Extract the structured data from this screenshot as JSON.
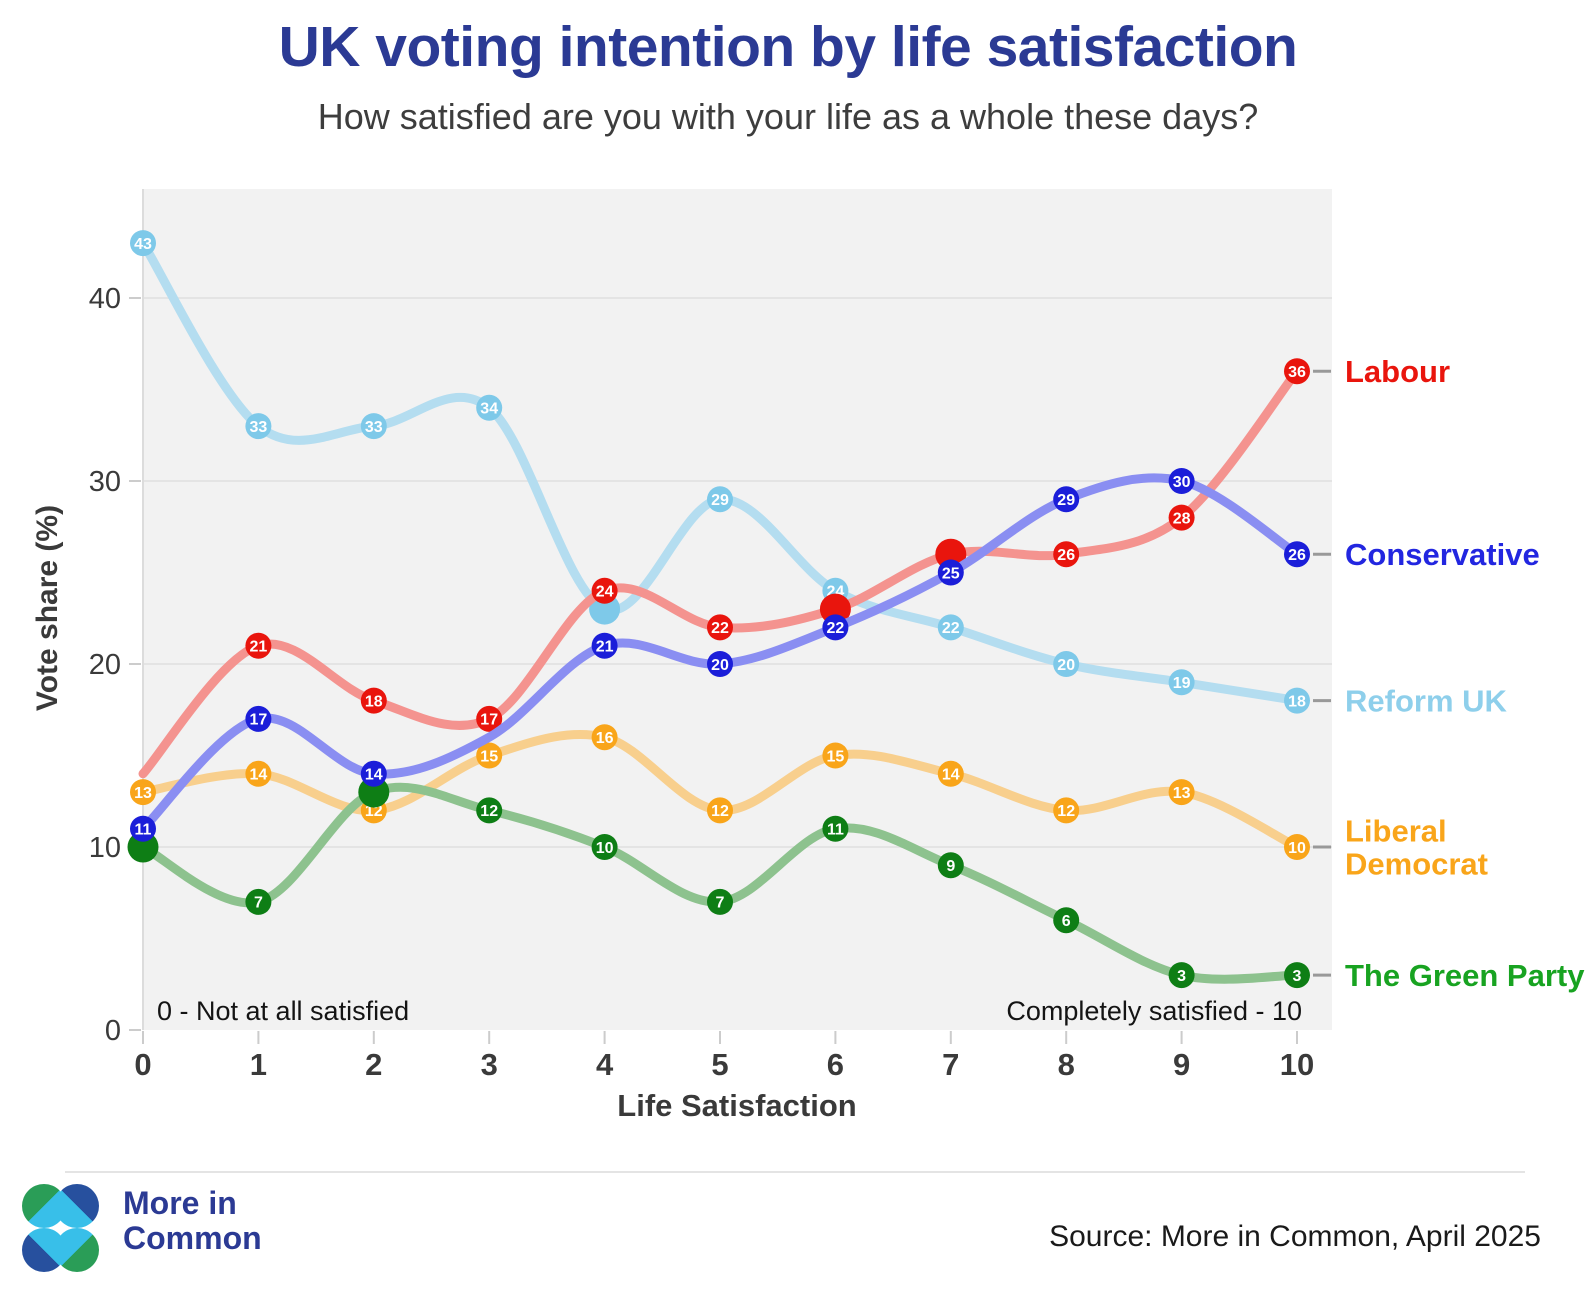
{
  "title": "UK voting intention by life satisfaction",
  "subtitle": "How satisfied are you with your life as a whole these days?",
  "axes": {
    "y_label": "Vote share (%)",
    "x_label": "Life Satisfaction",
    "y_ticks": [
      0,
      10,
      20,
      30,
      40
    ],
    "x_ticks": [
      0,
      1,
      2,
      3,
      4,
      5,
      6,
      7,
      8,
      9,
      10
    ]
  },
  "annotations": {
    "left": "0 - Not at all satisfied",
    "right": "Completely satisfied - 10"
  },
  "footer": {
    "logo_line1": "More in",
    "logo_line2": "Common",
    "source": "Source: More in Common, April 2025"
  },
  "colors": {
    "title": "#2b3a94",
    "plot_background": "#f2f2f2",
    "gridline": "#e4e4e4",
    "axis_line": "#dcdcdc",
    "tick": "#cccccc",
    "axis_text": "#3a3a3a",
    "legend_dash": "#999999"
  },
  "chart_data": {
    "type": "line",
    "title": "UK voting intention by life satisfaction",
    "subtitle": "How satisfied are you with your life as a whole these days?",
    "xlabel": "Life Satisfaction",
    "ylabel": "Vote share (%)",
    "x": [
      0,
      1,
      2,
      3,
      4,
      5,
      6,
      7,
      8,
      9,
      10
    ],
    "ylim": [
      0,
      46
    ],
    "grid": "horizontal",
    "legend_position": "right",
    "draw_order": [
      "Reform UK",
      "Liberal Democrat",
      "The Green Party",
      "Labour",
      "Conservative"
    ],
    "series": [
      {
        "name": "Labour",
        "legend_lines": [
          "Labour"
        ],
        "dot_color": "#e9150d",
        "line_color": "#f4938f",
        "legend_color": "#e9150d",
        "values": [
          14,
          21,
          18,
          17,
          24,
          22,
          23,
          26,
          26,
          28,
          36
        ],
        "hidden_label_indices": [
          0
        ],
        "emphasis_indices": [
          6,
          7
        ]
      },
      {
        "name": "Conservative",
        "legend_lines": [
          "Conservative"
        ],
        "dot_color": "#1b1ed9",
        "line_color": "#8a8ef2",
        "legend_color": "#2226e0",
        "values": [
          11,
          17,
          14,
          16,
          21,
          20,
          22,
          25,
          29,
          30,
          26
        ],
        "hidden_label_indices": [
          3
        ],
        "emphasis_indices": []
      },
      {
        "name": "Reform UK",
        "legend_lines": [
          "Reform UK"
        ],
        "dot_color": "#7ec9e9",
        "line_color": "#b4ddf0",
        "legend_color": "#8ecfeb",
        "values": [
          43,
          33,
          33,
          34,
          23,
          29,
          24,
          22,
          20,
          19,
          18
        ],
        "hidden_label_indices": [],
        "emphasis_indices": [
          4
        ]
      },
      {
        "name": "Liberal Democrat",
        "legend_lines": [
          "Liberal",
          "Democrat"
        ],
        "dot_color": "#f9a51a",
        "line_color": "#f8cf8d",
        "legend_color": "#f9a51a",
        "values": [
          13,
          14,
          12,
          15,
          16,
          12,
          15,
          14,
          12,
          13,
          10
        ],
        "hidden_label_indices": [],
        "emphasis_indices": []
      },
      {
        "name": "The Green Party",
        "legend_lines": [
          "The Green Party"
        ],
        "dot_color": "#0e7e15",
        "line_color": "#8dc28e",
        "legend_color": "#18a321",
        "values": [
          10,
          7,
          13,
          12,
          10,
          7,
          11,
          9,
          6,
          3,
          3
        ],
        "hidden_label_indices": [],
        "emphasis_indices": [
          0,
          2
        ]
      }
    ]
  }
}
